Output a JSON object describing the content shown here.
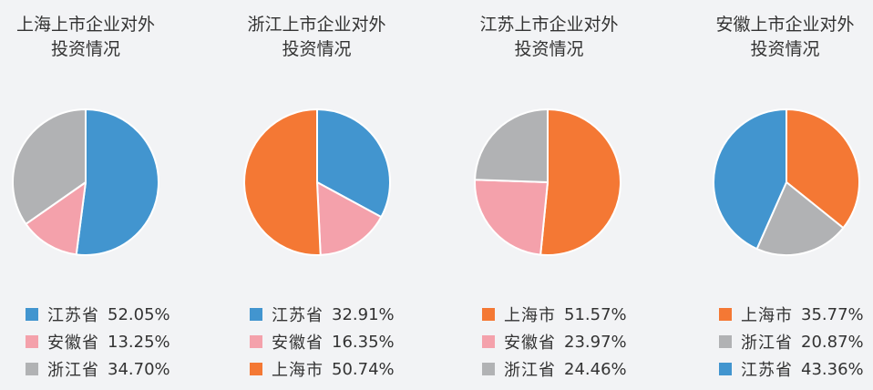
{
  "colors": {
    "jiangsu": "#4295cf",
    "anhui": "#f4a1ab",
    "zhejiang": "#b1b2b4",
    "shanghai": "#f47834"
  },
  "chart_data": [
    {
      "type": "pie",
      "title_lines": [
        "上海上市企业对外",
        "投资情况"
      ],
      "slices": [
        {
          "label": "江苏省",
          "value": 52.05,
          "display": "52.05%",
          "color": "#4295cf"
        },
        {
          "label": "安徽省",
          "value": 13.25,
          "display": "13.25%",
          "color": "#f4a1ab"
        },
        {
          "label": "浙江省",
          "value": 34.7,
          "display": "34.70%",
          "color": "#b1b2b4"
        }
      ]
    },
    {
      "type": "pie",
      "title_lines": [
        "浙江上市企业对外",
        "投资情况"
      ],
      "slices": [
        {
          "label": "江苏省",
          "value": 32.91,
          "display": "32.91%",
          "color": "#4295cf"
        },
        {
          "label": "安徽省",
          "value": 16.35,
          "display": "16.35%",
          "color": "#f4a1ab"
        },
        {
          "label": "上海市",
          "value": 50.74,
          "display": "50.74%",
          "color": "#f47834"
        }
      ]
    },
    {
      "type": "pie",
      "title_lines": [
        "江苏上市企业对外",
        "投资情况"
      ],
      "slices": [
        {
          "label": "上海市",
          "value": 51.57,
          "display": "51.57%",
          "color": "#f47834"
        },
        {
          "label": "安徽省",
          "value": 23.97,
          "display": "23.97%",
          "color": "#f4a1ab"
        },
        {
          "label": "浙江省",
          "value": 24.46,
          "display": "24.46%",
          "color": "#b1b2b4"
        }
      ]
    },
    {
      "type": "pie",
      "title_lines": [
        "安徽上市企业对外",
        "投资情况"
      ],
      "slices": [
        {
          "label": "上海市",
          "value": 35.77,
          "display": "35.77%",
          "color": "#f47834"
        },
        {
          "label": "浙江省",
          "value": 20.87,
          "display": "20.87%",
          "color": "#b1b2b4"
        },
        {
          "label": "江苏省",
          "value": 43.36,
          "display": "43.36%",
          "color": "#4295cf"
        }
      ]
    }
  ]
}
